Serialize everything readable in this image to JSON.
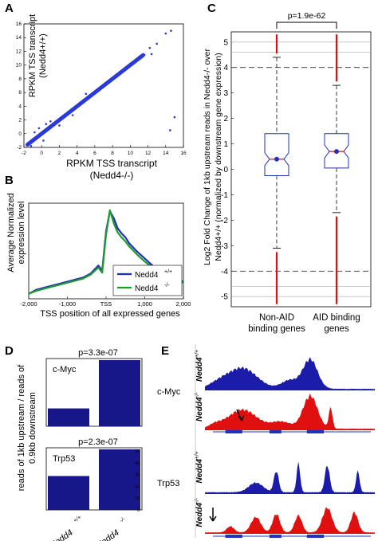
{
  "panels": {
    "A": {
      "letter": "A",
      "chart_data": {
        "type": "scatter",
        "xlabel": "RPKM TSS transcript (Nedd4-/-)",
        "ylabel": "RPKM TSS transcript (Nedd4+/+)",
        "xlim": [
          -2,
          16
        ],
        "ylim": [
          -2,
          16
        ],
        "x_ticks": [
          "-2",
          "0",
          "2",
          "4",
          "6",
          "8",
          "10",
          "12",
          "14",
          "16"
        ],
        "y_ticks": [
          "-2",
          "0",
          "2",
          "4",
          "6",
          "8",
          "10",
          "12",
          "14",
          "16"
        ],
        "points": [
          [
            -1.5,
            -1.4
          ],
          [
            -1,
            -0.8
          ],
          [
            -0.5,
            -0.6
          ],
          [
            0,
            0.1
          ],
          [
            0.3,
            0.2
          ],
          [
            0.6,
            0.5
          ],
          [
            1,
            1.1
          ],
          [
            1.3,
            1.2
          ],
          [
            1.6,
            1.5
          ],
          [
            2,
            2.1
          ],
          [
            2.3,
            2.2
          ],
          [
            2.6,
            2.5
          ],
          [
            3,
            3.1
          ],
          [
            3.3,
            3.4
          ],
          [
            3.6,
            3.5
          ],
          [
            4,
            4.1
          ],
          [
            4.4,
            4.3
          ],
          [
            4.8,
            4.9
          ],
          [
            5.2,
            5.3
          ],
          [
            5.6,
            5.5
          ],
          [
            6,
            6.1
          ],
          [
            6.4,
            6.5
          ],
          [
            6.8,
            6.9
          ],
          [
            7.2,
            7.1
          ],
          [
            7.6,
            7.7
          ],
          [
            8,
            8.1
          ],
          [
            8.4,
            8.5
          ],
          [
            8.8,
            8.9
          ],
          [
            9.2,
            9.1
          ],
          [
            9.6,
            9.7
          ],
          [
            10,
            10.2
          ],
          [
            10.5,
            10.4
          ],
          [
            11,
            11.2
          ],
          [
            11.6,
            11.5
          ],
          [
            12.2,
            12.5
          ],
          [
            13,
            13.1
          ],
          [
            14,
            14.6
          ],
          [
            14.6,
            15.0
          ],
          [
            12.4,
            11.6
          ],
          [
            1,
            1.8
          ],
          [
            0.5,
            1.4
          ],
          [
            2,
            1.2
          ],
          [
            -0.8,
            0.2
          ],
          [
            0.2,
            -1
          ],
          [
            3.5,
            2.7
          ],
          [
            5,
            5.8
          ],
          [
            15,
            2.4
          ],
          [
            14.5,
            0.5
          ],
          [
            -1.2,
            -1.8
          ],
          [
            -0.3,
            0.8
          ]
        ]
      },
      "x_axis_text": "RPKM TSS transcript",
      "x_axis_text2": "(Nedd4-/-)",
      "y_axis_text": "RPKM TSS transcript",
      "y_axis_text2": "(Nedd4+/+)"
    },
    "B": {
      "letter": "B",
      "chart_data": {
        "type": "line",
        "xlabel": "TSS position of all expressed genes",
        "ylabel": "Average Normalized expression level",
        "x_ticks": [
          "-2,000",
          "-1,000",
          "TSS",
          "1,000",
          "2,000"
        ],
        "x": [
          -2000,
          -1800,
          -1600,
          -1400,
          -1200,
          -1000,
          -800,
          -600,
          -400,
          -200,
          -100,
          0,
          100,
          200,
          300,
          400,
          500,
          600,
          800,
          1000,
          1200,
          1400,
          1600,
          1800,
          2000
        ],
        "series": [
          {
            "name": "Nedd4+/+",
            "color": "#1f2fb8",
            "values": [
              0.1,
              0.14,
              0.16,
              0.18,
              0.2,
              0.22,
              0.24,
              0.26,
              0.3,
              0.38,
              0.33,
              0.72,
              0.92,
              0.85,
              0.75,
              0.7,
              0.66,
              0.6,
              0.52,
              0.45,
              0.38,
              0.32,
              0.27,
              0.24,
              0.22
            ]
          },
          {
            "name": "Nedd4-/-",
            "color": "#1e9a2e",
            "values": [
              0.1,
              0.13,
              0.15,
              0.17,
              0.19,
              0.21,
              0.23,
              0.25,
              0.29,
              0.36,
              0.31,
              0.69,
              0.93,
              0.8,
              0.71,
              0.66,
              0.62,
              0.57,
              0.49,
              0.42,
              0.36,
              0.3,
              0.26,
              0.23,
              0.21
            ]
          }
        ],
        "legend": [
          "Nedd4+/+",
          "Nedd4-/-"
        ],
        "legend_position": "bottom-right"
      },
      "ylabel_line1": "Average Normalized",
      "ylabel_line2": "expression level",
      "legend_labels": {
        "wt": "Nedd4",
        "wt_sup": "+/+",
        "ko": "Nedd4",
        "ko_sup": "-/-"
      }
    },
    "C": {
      "letter": "C",
      "chart_data": {
        "type": "box",
        "title": "p=1.9e-62",
        "ylabel": "Log2 Fold Change of 1kb upstream reads in Nedd4-/- over Nedd4+/+ (normalized by downstream gene expression)",
        "ylim": [
          -5.4,
          5.4
        ],
        "y_ticks": [
          "5",
          "4",
          "3",
          "2",
          "1",
          "0",
          "-1",
          "-2",
          "-3",
          "-4",
          "-5"
        ],
        "categories": [
          "Non-AID binding genes",
          "AID binding genes"
        ],
        "boxes": [
          {
            "category": "Non-AID binding genes",
            "q1": -0.25,
            "median": 0.4,
            "q3": 1.4,
            "whisker_low": -3.1,
            "whisker_high": 4.4,
            "mean": 0.4
          },
          {
            "category": "AID binding genes",
            "q1": 0.05,
            "median": 0.7,
            "q3": 1.4,
            "whisker_low": -1.7,
            "whisker_high": 3.3,
            "mean": 0.7
          }
        ],
        "dashed_lines": [
          4,
          -4
        ]
      },
      "ylabel_line1": "Log2 Fold Change of 1kb upstream reads in Nedd4-/- over",
      "ylabel_line2": "Nedd4+/+ (normalized by downstream gene expression)",
      "cat1_line1": "Non-AID",
      "cat1_line2": "binding genes",
      "cat2_line1": "AID binding",
      "cat2_line2": "genes"
    },
    "D": {
      "letter": "D",
      "chart_data": [
        {
          "type": "bar",
          "title": "p=3.3e-07",
          "gene": "c-Myc",
          "categories": [
            "Nedd4+/+",
            "Nedd4-/-"
          ],
          "values": [
            0.27,
            1.0
          ]
        },
        {
          "type": "bar",
          "title": "p=2.3e-07",
          "gene": "Trp53",
          "categories": [
            "Nedd4+/+",
            "Nedd4-/-"
          ],
          "values": [
            0.56,
            1.0
          ]
        }
      ],
      "ylabel_line1": "reads of 1kb upstream / reads of",
      "ylabel_line2": "0.9kb downstream",
      "xcat1": "Nedd4",
      "xcat1_sup": "+/+",
      "xcat2": "Nedd4",
      "xcat2_sup": "-/-",
      "trp53_ticks": [
        "50",
        "40",
        "30",
        "20",
        "10",
        "0"
      ]
    },
    "E": {
      "letter": "E",
      "genes": [
        "c-Myc",
        "Trp53"
      ],
      "tracks": [
        {
          "gene": "c-Myc",
          "genotype": "Nedd4",
          "sup": "+/+",
          "color": "#1c1caa"
        },
        {
          "gene": "c-Myc",
          "genotype": "Nedd4",
          "sup": "-/-",
          "color": "#e01010"
        },
        {
          "gene": "Trp53",
          "genotype": "Nedd4",
          "sup": "+/+",
          "color": "#1c1caa"
        },
        {
          "gene": "Trp53",
          "genotype": "Nedd4",
          "sup": "-/-",
          "color": "#e01010"
        }
      ]
    }
  }
}
